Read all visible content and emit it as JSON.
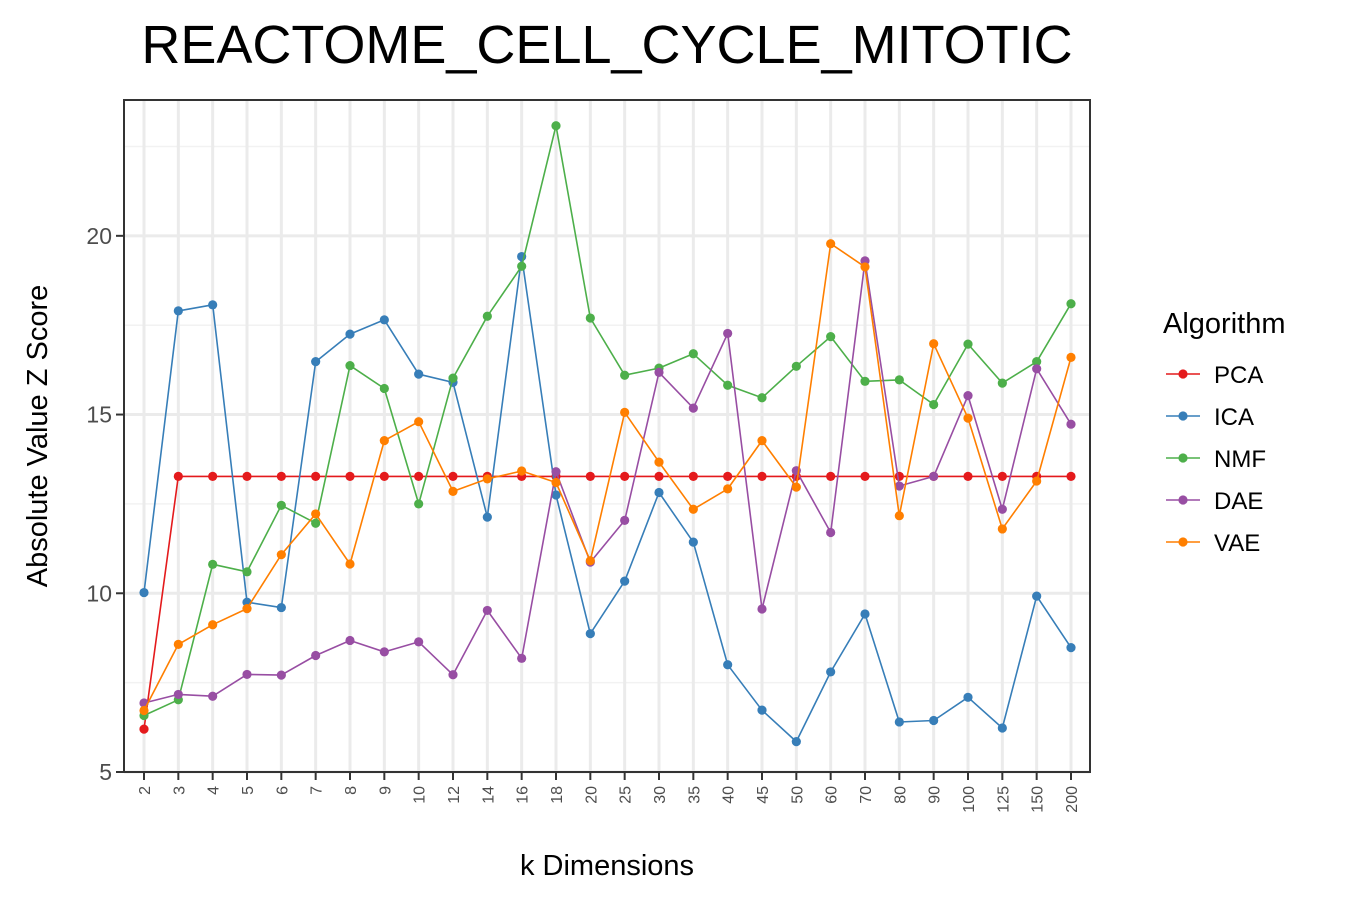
{
  "chart_data": {
    "type": "line",
    "title": "REACTOME_CELL_CYCLE_MITOTIC",
    "xlabel": "k Dimensions",
    "ylabel": "Absolute Value Z Score",
    "categories": [
      "2",
      "3",
      "4",
      "5",
      "6",
      "7",
      "8",
      "9",
      "10",
      "12",
      "14",
      "16",
      "18",
      "20",
      "25",
      "30",
      "35",
      "40",
      "45",
      "50",
      "60",
      "70",
      "80",
      "90",
      "100",
      "125",
      "150",
      "200"
    ],
    "yticks": [
      5,
      10,
      15,
      20
    ],
    "ylim": [
      5,
      23.8
    ],
    "grid": true,
    "legend": {
      "title": "Algorithm",
      "placement": "right"
    },
    "series": [
      {
        "name": "PCA",
        "color": "#E41A1C",
        "values": [
          6.2,
          13.27,
          13.27,
          13.27,
          13.27,
          13.27,
          13.27,
          13.27,
          13.27,
          13.27,
          13.27,
          13.27,
          13.27,
          13.27,
          13.27,
          13.27,
          13.27,
          13.27,
          13.27,
          13.27,
          13.27,
          13.27,
          13.27,
          13.27,
          13.27,
          13.27,
          13.27,
          13.27
        ]
      },
      {
        "name": "ICA",
        "color": "#377EB8",
        "values": [
          10.02,
          17.9,
          18.07,
          9.75,
          9.6,
          16.48,
          17.25,
          17.65,
          16.13,
          15.9,
          12.13,
          19.42,
          12.75,
          8.87,
          10.34,
          12.82,
          11.43,
          8.0,
          6.73,
          5.85,
          7.8,
          9.42,
          6.4,
          6.44,
          7.09,
          6.23,
          9.92,
          8.48
        ]
      },
      {
        "name": "NMF",
        "color": "#4DAF4A",
        "values": [
          6.58,
          7.02,
          10.81,
          10.6,
          12.46,
          11.96,
          16.37,
          15.73,
          12.5,
          16.02,
          17.75,
          19.15,
          23.08,
          17.7,
          16.1,
          16.3,
          16.7,
          15.82,
          15.47,
          16.35,
          17.18,
          15.93,
          15.97,
          15.28,
          16.97,
          15.88,
          16.48,
          18.1
        ]
      },
      {
        "name": "DAE",
        "color": "#984EA3",
        "values": [
          6.93,
          7.17,
          7.12,
          7.73,
          7.71,
          8.26,
          8.68,
          8.36,
          8.64,
          7.72,
          9.52,
          8.18,
          13.4,
          10.87,
          12.04,
          16.18,
          15.18,
          17.27,
          9.56,
          13.43,
          11.7,
          19.3,
          13.0,
          13.27,
          15.53,
          12.35,
          16.28,
          14.73
        ]
      },
      {
        "name": "VAE",
        "color": "#FF7F00",
        "values": [
          6.72,
          8.57,
          9.12,
          9.57,
          11.08,
          12.22,
          10.82,
          14.27,
          14.8,
          12.85,
          13.2,
          13.42,
          13.1,
          10.91,
          15.06,
          13.67,
          12.35,
          12.92,
          14.27,
          12.97,
          19.78,
          19.13,
          12.17,
          16.98,
          14.9,
          11.8,
          13.14,
          16.6
        ]
      }
    ]
  }
}
